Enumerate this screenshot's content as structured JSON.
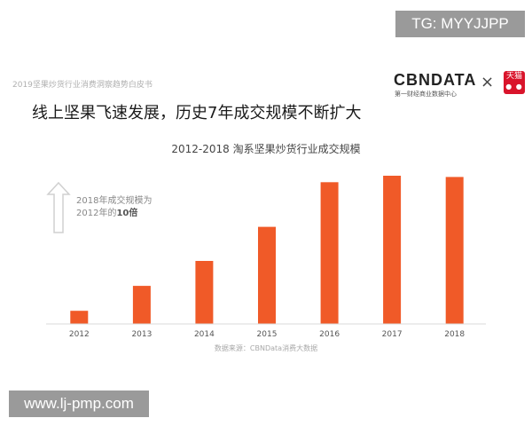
{
  "watermark_top": "TG: MYYJJPP",
  "watermark_bottom": "www.lj-pmp.com",
  "report_title": "2019坚果炒货行业消费洞察趋势白皮书",
  "logo": {
    "brand": "CBNDATA",
    "tagline": "第一财经商业数据中心",
    "partner": "天猫"
  },
  "headline": "线上坚果飞速发展，历史7年成交规模不断扩大",
  "annotation": {
    "line1": "2018年成交规模为",
    "line2_prefix": "2012年的",
    "line2_emphasis": "10倍"
  },
  "data_source": "数据来源：CBNData消费大数据",
  "colors": {
    "bar": "#f05a28",
    "axis": "#d9d9d9",
    "arrow": "#d0d0d0"
  },
  "chart_data": {
    "type": "bar",
    "title": "2012-2018 淘系坚果炒货行业成交规模",
    "categories": [
      "2012",
      "2013",
      "2014",
      "2015",
      "2016",
      "2017",
      "2018"
    ],
    "values": [
      1.0,
      2.9,
      4.8,
      7.4,
      10.8,
      11.3,
      11.2
    ],
    "ylim": [
      0,
      11.5
    ],
    "xlabel": "",
    "ylabel": "",
    "grid": false,
    "legend": "none"
  }
}
